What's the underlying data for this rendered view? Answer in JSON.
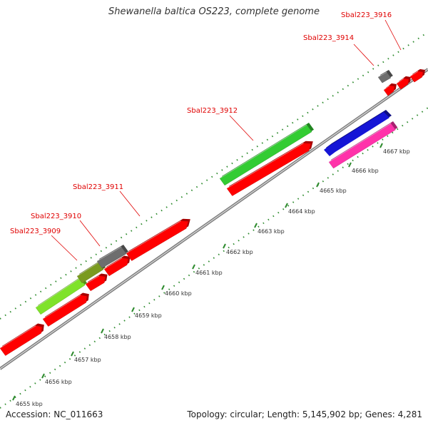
{
  "title": "Shewanella baltica OS223, complete genome",
  "footer": {
    "accession": "Accession: NC_011663",
    "topology": "Topology: circular; Length: 5,145,902 bp; Genes: 4,281"
  },
  "colors": {
    "cds": "#ff0000",
    "backbone": "#888888",
    "tick": "#2e8b2e",
    "label": "#e00000"
  },
  "ticks": [
    "4655 kbp",
    "4656 kbp",
    "4657 kbp",
    "4658 kbp",
    "4659 kbp",
    "4660 kbp",
    "4661 kbp",
    "4662 kbp",
    "4663 kbp",
    "4664 kbp",
    "4665 kbp",
    "4666 kbp",
    "4667 kbp"
  ],
  "labels": [
    "Sbal223_3909",
    "Sbal223_3910",
    "Sbal223_3911",
    "Sbal223_3912",
    "Sbal223_3914",
    "Sbal223_3916"
  ],
  "features": [
    {
      "name": "cds-red",
      "color": "#ff0000"
    },
    {
      "name": "cds-lightgreen",
      "color": "#7fe22a"
    },
    {
      "name": "cds-olive",
      "color": "#7a9a20"
    },
    {
      "name": "cds-gray",
      "color": "#6e6e6e"
    },
    {
      "name": "cds-green",
      "color": "#33cc33"
    },
    {
      "name": "cds-blue",
      "color": "#1515d6"
    },
    {
      "name": "cds-magenta",
      "color": "#ff33aa"
    }
  ]
}
